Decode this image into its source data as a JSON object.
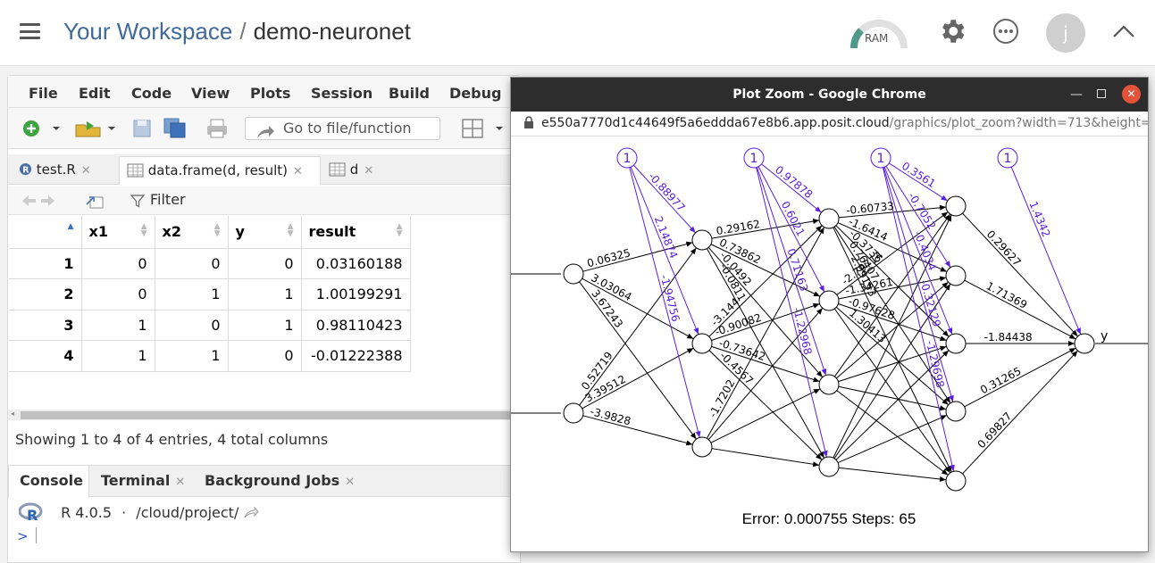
{
  "topbar": {
    "workspace": "Your Workspace",
    "separator": "/",
    "project": "demo-neuronet",
    "ram_label": "RAM",
    "avatar_initial": "j",
    "icons": [
      "hamburger-icon",
      "gear-icon",
      "more-icon",
      "chevron-up-icon"
    ]
  },
  "menu": [
    "File",
    "Edit",
    "Code",
    "View",
    "Plots",
    "Session",
    "Build",
    "Debug"
  ],
  "toolbar": {
    "goto_placeholder": "Go to file/function"
  },
  "editor_tabs": [
    {
      "label": "test.R"
    },
    {
      "label": "data.frame(d, result)"
    },
    {
      "label": "d"
    }
  ],
  "filter_label": "Filter",
  "table": {
    "columns": [
      "x1",
      "x2",
      "y",
      "result"
    ],
    "rows": [
      {
        "n": "1",
        "x1": "0",
        "x2": "0",
        "y": "0",
        "result": "0.03160188"
      },
      {
        "n": "2",
        "x1": "0",
        "x2": "1",
        "y": "1",
        "result": "1.00199291"
      },
      {
        "n": "3",
        "x1": "1",
        "x2": "0",
        "y": "1",
        "result": "0.98110423"
      },
      {
        "n": "4",
        "x1": "1",
        "x2": "1",
        "y": "0",
        "result": "-0.01222388"
      }
    ]
  },
  "summary": "Showing 1 to 4 of 4 entries, 4 total columns",
  "console_tabs": [
    "Console",
    "Terminal",
    "Background Jobs"
  ],
  "r_version": "R 4.0.5",
  "r_dot": "·",
  "working_dir": "/cloud/project/",
  "prompt": ">",
  "chrome": {
    "title": "Plot Zoom - Google Chrome",
    "host": "e550a7770d1c44649f5a6eddda67e8b6.app.posit.cloud",
    "path": "/graphics/plot_zoom?width=713&height=466&..."
  },
  "plot": {
    "bias_label": "1",
    "output_label": "y",
    "footer": "Error: 0.000755   Steps: 65",
    "weights_l1": [
      "0.06325",
      "3.03064",
      "3.67243",
      "0.52719",
      "3.39512",
      "-3.9828"
    ],
    "bias_l1": [
      "-0.88977",
      "2.14874",
      "-1.94756"
    ],
    "weights_l2": [
      "0.29162",
      "0.73862",
      "-0.0492",
      "-0.0811",
      "-3.144",
      "-0.90082",
      "-0.73642",
      "-0.4567",
      "-1.7202"
    ],
    "bias_l2": [
      "0.97878",
      "0.6021",
      "0.71163",
      "-1.22968"
    ],
    "weights_l3": [
      "-0.60733",
      "-1.6414",
      "-0.3736",
      "0.76407",
      "-2.09153",
      "-2.79714",
      "-1.34261",
      "-0.97628",
      "1.30413"
    ],
    "bias_l3": [
      "0.3561",
      "-0.7052",
      "-0.4034",
      "-0.32129",
      "-1.29698"
    ],
    "weights_out": [
      "0.29627",
      "1.71369",
      "-1.84438",
      "0.31265",
      "0.69827"
    ],
    "bias_out": [
      "1.4342"
    ]
  }
}
